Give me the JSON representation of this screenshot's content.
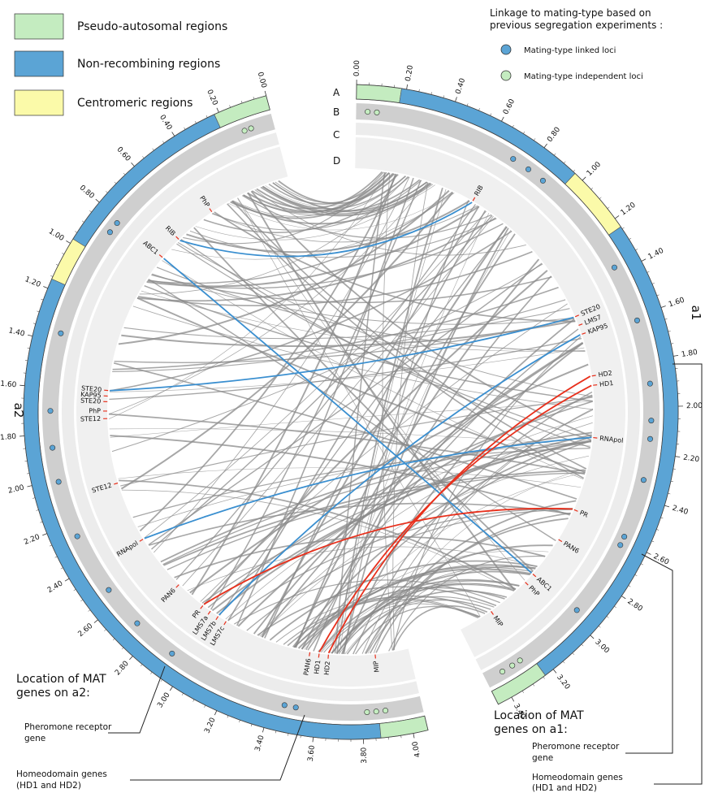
{
  "legend": {
    "regions": [
      {
        "label": "Pseudo-autosomal regions",
        "color": "#c4ecc0"
      },
      {
        "label": "Non-recombining regions",
        "color": "#5ba4d5"
      },
      {
        "label": "Centromeric regions",
        "color": "#fbfaa9"
      }
    ],
    "loci_title": [
      "Linkage to mating-type based on",
      "previous segregation experiments :"
    ],
    "loci": [
      {
        "label": "Mating-type linked loci",
        "color": "#5ba4d5"
      },
      {
        "label": "Mating-type independent loci",
        "color": "#c4ecc0"
      }
    ]
  },
  "track_labels": [
    "A",
    "B",
    "C",
    "D"
  ],
  "chromosomes": [
    {
      "name": "a1",
      "ticks": [
        "0.00",
        "0.20",
        "0.40",
        "0.60",
        "0.80",
        "1.00",
        "1.20",
        "1.40",
        "1.60",
        "1.80",
        "2.00",
        "2.20",
        "2.40",
        "2.60",
        "2.80",
        "3.00",
        "3.20",
        "3.40"
      ],
      "regions": [
        {
          "kind": 0,
          "start": 0,
          "end": 0.18
        },
        {
          "kind": 1,
          "start": 0.18,
          "end": 0.96
        },
        {
          "kind": 2,
          "start": 0.96,
          "end": 1.24
        },
        {
          "kind": 1,
          "start": 1.24,
          "end": 3.24
        },
        {
          "kind": 0,
          "start": 3.24,
          "end": 3.46
        }
      ],
      "linked_loci": [
        0.72,
        0.8,
        0.88,
        1.37,
        1.62,
        1.9,
        2.06,
        2.14,
        2.32,
        2.58,
        2.62,
        2.96
      ],
      "independent_loci": [
        0.05,
        0.09,
        3.29,
        3.33,
        3.38
      ],
      "genes": [
        {
          "label": "RIB",
          "pos": 0.66,
          "color": "#222"
        },
        {
          "label": "STE20",
          "pos": 1.5,
          "color": "#222"
        },
        {
          "label": "LMS7",
          "pos": 1.55,
          "color": "#222"
        },
        {
          "label": "KAP95",
          "pos": 1.6,
          "color": "#222"
        },
        {
          "label": "HD2",
          "pos": 1.83,
          "color": "#e02010"
        },
        {
          "label": "HD1",
          "pos": 1.88,
          "color": "#e02010"
        },
        {
          "label": "RNApol",
          "pos": 2.16,
          "color": "#222"
        },
        {
          "label": "PR",
          "pos": 2.56,
          "color": "#e02010"
        },
        {
          "label": "PAN6",
          "pos": 2.74,
          "color": "#222"
        },
        {
          "label": "ABC1",
          "pos": 2.97,
          "color": "#222"
        },
        {
          "label": "PhP",
          "pos": 3.03,
          "color": "#222"
        },
        {
          "label": "MIP",
          "pos": 3.27,
          "color": "#222"
        }
      ]
    },
    {
      "name": "a2",
      "ticks": [
        "0.00",
        "0.20",
        "0.40",
        "0.60",
        "0.80",
        "1.00",
        "1.20",
        "1.40",
        "1.60",
        "1.80",
        "2.00",
        "2.20",
        "2.40",
        "2.60",
        "2.80",
        "3.00",
        "3.20",
        "3.40",
        "3.60",
        "3.80",
        "4.00"
      ],
      "regions": [
        {
          "kind": 0,
          "start": 0,
          "end": 0.22
        },
        {
          "kind": 1,
          "start": 0.22,
          "end": 0.98
        },
        {
          "kind": 2,
          "start": 0.98,
          "end": 1.16
        },
        {
          "kind": 1,
          "start": 1.16,
          "end": 3.87
        },
        {
          "kind": 0,
          "start": 3.87,
          "end": 4.06
        }
      ],
      "linked_loci": [
        0.82,
        0.87,
        1.36,
        1.7,
        1.86,
        2.01,
        2.26,
        2.53,
        2.72,
        2.92,
        3.46,
        3.51
      ],
      "independent_loci": [
        0.1,
        0.13,
        3.82,
        3.86,
        3.9
      ],
      "genes": [
        {
          "label": "PhP",
          "pos": 0.45,
          "color": "#222"
        },
        {
          "label": "RIB",
          "pos": 0.68,
          "color": "#222"
        },
        {
          "label": "ABC1",
          "pos": 0.81,
          "color": "#222"
        },
        {
          "label": "STE20",
          "pos": 1.59,
          "color": "#222"
        },
        {
          "label": "KAP95",
          "pos": 1.62,
          "color": "#222"
        },
        {
          "label": "STE20",
          "pos": 1.65,
          "color": "#222"
        },
        {
          "label": "PhP",
          "pos": 1.7,
          "color": "#222"
        },
        {
          "label": "STE12",
          "pos": 1.74,
          "color": "#222"
        },
        {
          "label": "STE12",
          "pos": 2.09,
          "color": "#222"
        },
        {
          "label": "RNApol",
          "pos": 2.42,
          "color": "#222"
        },
        {
          "label": "PAN6",
          "pos": 2.73,
          "color": "#222"
        },
        {
          "label": "PR",
          "pos": 2.9,
          "color": "#e02010"
        },
        {
          "label": "LMS7a",
          "pos": 2.95,
          "color": "#222"
        },
        {
          "label": "LMS7b",
          "pos": 3.0,
          "color": "#222"
        },
        {
          "label": "LMS7c",
          "pos": 3.05,
          "color": "#222"
        },
        {
          "label": "PAN6",
          "pos": 3.53,
          "color": "#222"
        },
        {
          "label": "HD1",
          "pos": 3.58,
          "color": "#e02010"
        },
        {
          "label": "HD2",
          "pos": 3.63,
          "color": "#e02010"
        },
        {
          "label": "MIP",
          "pos": 3.88,
          "color": "#222"
        }
      ]
    }
  ],
  "links": [
    {
      "a1": 0,
      "a2": 1,
      "color": "#3a8fd0"
    },
    {
      "a1": 9,
      "a2": 2,
      "color": "#3a8fd0"
    },
    {
      "a1": 1,
      "a2": 3,
      "color": "#3a8fd0"
    },
    {
      "a1": 3,
      "a2": 13,
      "color": "#3a8fd0"
    },
    {
      "a1": 6,
      "a2": 9,
      "color": "#3a8fd0"
    },
    {
      "a1": 7,
      "a2": 11,
      "color": "#e8301c"
    },
    {
      "a1": 5,
      "a2": 16,
      "color": "#e8301c"
    },
    {
      "a1": 4,
      "a2": 17,
      "color": "#e8301c"
    }
  ],
  "annotations": {
    "a2": {
      "title": [
        "Location of MAT",
        "genes on a2:"
      ],
      "pheromone": [
        "Pheromone receptor",
        "gene"
      ],
      "homeodomain": [
        "Homeodomain genes",
        "(HD1 and HD2)"
      ]
    },
    "a1": {
      "title": [
        "Location of MAT",
        "genes on a1:"
      ],
      "pheromone": [
        "Pheromone receptor",
        "gene"
      ],
      "homeodomain": [
        "Homeodomain genes",
        "(HD1 and HD2)"
      ]
    }
  }
}
